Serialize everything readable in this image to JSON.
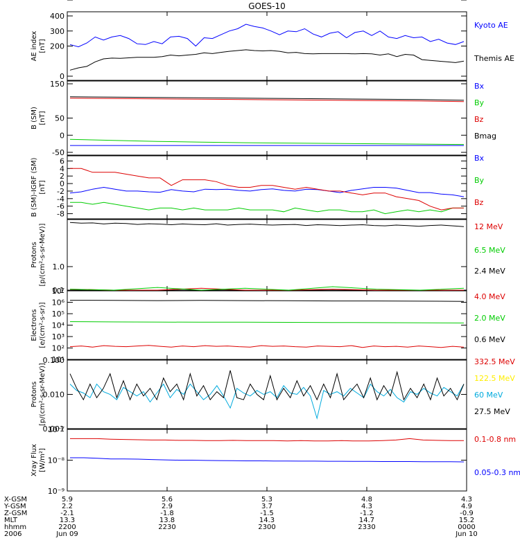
{
  "title": "GOES-10",
  "colors": {
    "black": "#000000",
    "blue": "#0000ff",
    "green": "#00cc00",
    "red": "#dd0000",
    "cyan": "#00aadd",
    "yellow": "#ffee00"
  },
  "chart_data": [
    {
      "type": "line",
      "ylabel": [
        "AE index",
        "[nT]"
      ],
      "ylim": [
        0,
        400
      ],
      "yticks": [
        "0",
        "100",
        "200",
        "300",
        "400"
      ],
      "series": [
        {
          "name": "Kyoto AE",
          "color": "#0000ff",
          "values": [
            210,
            195,
            220,
            260,
            240,
            260,
            270,
            250,
            215,
            210,
            230,
            215,
            260,
            265,
            250,
            200,
            255,
            250,
            275,
            300,
            315,
            345,
            330,
            320,
            300,
            275,
            300,
            295,
            315,
            280,
            260,
            285,
            295,
            255,
            290,
            300,
            270,
            300,
            260,
            250,
            270,
            255,
            260,
            230,
            245,
            220,
            210,
            230
          ]
        },
        {
          "name": "Themis AE",
          "color": "#000000",
          "values": [
            40,
            55,
            65,
            95,
            115,
            120,
            118,
            122,
            125,
            125,
            125,
            130,
            140,
            135,
            140,
            145,
            155,
            150,
            158,
            165,
            170,
            175,
            170,
            168,
            170,
            165,
            155,
            158,
            150,
            148,
            150,
            150,
            150,
            150,
            148,
            150,
            148,
            140,
            148,
            130,
            145,
            140,
            110,
            105,
            100,
            95,
            90,
            100
          ]
        }
      ]
    },
    {
      "type": "line",
      "ylabel": [
        "B (SM)",
        "[nT]"
      ],
      "ylim": [
        -50,
        150
      ],
      "yticks": [
        "-50",
        "0",
        "50",
        "100",
        "150"
      ],
      "series": [
        {
          "name": "Bx",
          "color": "#0000ff",
          "values": [
            -30,
            -30,
            -30,
            -30,
            -30,
            -30,
            -30,
            -30,
            -30,
            -30
          ]
        },
        {
          "name": "By",
          "color": "#00cc00",
          "values": [
            -12,
            -15,
            -18,
            -20,
            -22,
            -23,
            -24,
            -25,
            -26,
            -27
          ]
        },
        {
          "name": "Bz",
          "color": "#dd0000",
          "values": [
            108,
            107,
            106,
            105,
            104,
            103,
            102,
            101,
            100,
            98
          ]
        },
        {
          "name": "Bmag",
          "color": "#000000",
          "values": [
            112,
            111,
            110,
            109,
            108,
            107,
            106,
            105,
            104,
            102
          ]
        }
      ]
    },
    {
      "type": "line",
      "ylabel": [
        "B (SM)-IGRF (SM)",
        "[nT]"
      ],
      "ylim": [
        -9,
        7
      ],
      "yticks": [
        "-8",
        "-6",
        "-4",
        "-2",
        "0",
        "2",
        "4",
        "6"
      ],
      "series": [
        {
          "name": "Bx",
          "color": "#0000ff",
          "values": [
            -2.5,
            -2.2,
            -1.5,
            -1.0,
            -1.5,
            -2.0,
            -2.0,
            -2.2,
            -2.3,
            -1.6,
            -2.0,
            -2.2,
            -1.5,
            -1.6,
            -1.5,
            -1.8,
            -2.0,
            -1.6,
            -1.4,
            -1.8,
            -2.0,
            -1.5,
            -1.6,
            -2.0,
            -2.4,
            -1.8,
            -1.4,
            -1.0,
            -1.0,
            -1.2,
            -1.8,
            -2.4,
            -2.4,
            -2.8,
            -3.0,
            -3.5
          ]
        },
        {
          "name": "By",
          "color": "#00cc00",
          "values": [
            -5.0,
            -5.0,
            -5.5,
            -5.0,
            -5.5,
            -6.0,
            -6.5,
            -7.0,
            -6.5,
            -6.5,
            -7.0,
            -6.5,
            -7.0,
            -7.0,
            -7.0,
            -6.5,
            -7.0,
            -7.0,
            -7.0,
            -7.5,
            -6.5,
            -7.0,
            -7.5,
            -7.0,
            -7.0,
            -7.5,
            -7.5,
            -7.0,
            -8.0,
            -7.5,
            -7.0,
            -7.5,
            -7.0,
            -7.5,
            -6.5,
            -6.5
          ]
        },
        {
          "name": "Bz",
          "color": "#dd0000",
          "values": [
            4.0,
            4.0,
            3.0,
            3.0,
            3.0,
            2.5,
            2.0,
            1.5,
            1.5,
            -0.5,
            1.0,
            1.0,
            1.0,
            0.5,
            -0.5,
            -1.0,
            -1.0,
            -0.5,
            -0.5,
            -1.0,
            -1.5,
            -1.0,
            -1.5,
            -2.0,
            -2.0,
            -2.5,
            -3.0,
            -2.5,
            -2.5,
            -3.5,
            -4.0,
            -4.5,
            -6.0,
            -7.0,
            -6.5,
            -6.5
          ]
        }
      ]
    },
    {
      "type": "line",
      "ylabel": [
        "Protons",
        "[p/(cm²-s-sr-MeV)]"
      ],
      "yscale": "log",
      "ylim": [
        0.1,
        100
      ],
      "yticks": [
        "0.1",
        "1.0",
        "10.0",
        "100.0"
      ],
      "series": [
        {
          "name": "12 MeV",
          "color": "#dd0000",
          "values": [
            0.11,
            0.1,
            0.1,
            0.12,
            0.1,
            0.1,
            0.11,
            0.1,
            0.1,
            0.1
          ]
        },
        {
          "name": "6.5 MeV",
          "color": "#00cc00",
          "values": [
            0.11,
            0.1,
            0.13,
            0.1,
            0.12,
            0.1,
            0.14,
            0.11,
            0.1,
            0.12
          ]
        },
        {
          "name": "2.4 MeV",
          "color": "#000000",
          "values": [
            75,
            70,
            72,
            65,
            70,
            68,
            62,
            66,
            64,
            60,
            65,
            62,
            60,
            66,
            58,
            62,
            64,
            60,
            58,
            60,
            62,
            56,
            60,
            58,
            55,
            58,
            60,
            56,
            54,
            58,
            55,
            52,
            56,
            58,
            54,
            50
          ]
        }
      ]
    },
    {
      "type": "line",
      "ylabel": [
        "Electrons",
        "[e/(cm²-s-sr)]"
      ],
      "yscale": "log",
      "ylim": [
        10,
        10000000
      ],
      "yticks": [
        "10¹",
        "10²",
        "10³",
        "10⁴",
        "10⁵",
        "10⁶",
        "10⁷"
      ],
      "series": [
        {
          "name": "4.0 MeV",
          "color": "#dd0000",
          "values": [
            130,
            150,
            120,
            160,
            140,
            130,
            150,
            170,
            140,
            120,
            150,
            130,
            160,
            140,
            150,
            130,
            120,
            160,
            140,
            150,
            130,
            120,
            150,
            140,
            130,
            160,
            110,
            150,
            130,
            140,
            120,
            150,
            130,
            110,
            140,
            120
          ]
        },
        {
          "name": "2.0 MeV",
          "color": "#00cc00",
          "values": [
            20000,
            19000,
            18500,
            18000,
            18000,
            17500,
            17000,
            16500,
            16000,
            15500
          ]
        },
        {
          "name": "0.6 MeV",
          "color": "#000000",
          "values": [
            1500000,
            1450000,
            1400000,
            1450000,
            1400000,
            1350000,
            1300000,
            1300000,
            1250000,
            1200000
          ]
        }
      ]
    },
    {
      "type": "line",
      "ylabel": [
        "Protons",
        "[p/(cm²-s-sr-MeV)]"
      ],
      "yscale": "log",
      "ylim": [
        0.001,
        0.1
      ],
      "yticks": [
        "0.001",
        "0.010",
        "0.100"
      ],
      "series": [
        {
          "name": "332.5 MeV",
          "color": "#dd0000",
          "values": []
        },
        {
          "name": "122.5 MeV",
          "color": "#ffee00",
          "values": []
        },
        {
          "name": "60 MeV",
          "color": "#00aadd",
          "values": [
            0.02,
            0.013,
            0.011,
            0.008,
            0.02,
            0.012,
            0.01,
            0.007,
            0.016,
            0.012,
            0.009,
            0.012,
            0.006,
            0.011,
            0.02,
            0.008,
            0.014,
            0.01,
            0.02,
            0.012,
            0.007,
            0.01,
            0.018,
            0.009,
            0.004,
            0.015,
            0.011,
            0.009,
            0.013,
            0.01,
            0.012,
            0.008,
            0.018,
            0.011,
            0.01,
            0.016,
            0.009,
            0.002,
            0.013,
            0.01,
            0.012,
            0.009,
            0.015,
            0.011,
            0.008,
            0.02,
            0.012,
            0.009,
            0.014,
            0.008,
            0.006,
            0.012,
            0.01,
            0.015,
            0.011,
            0.009,
            0.016,
            0.012,
            0.009,
            0.02
          ]
        },
        {
          "name": "27.5 MeV",
          "color": "#000000",
          "values": [
            0.04,
            0.015,
            0.007,
            0.02,
            0.008,
            0.015,
            0.04,
            0.008,
            0.025,
            0.007,
            0.02,
            0.009,
            0.015,
            0.007,
            0.03,
            0.012,
            0.02,
            0.007,
            0.04,
            0.009,
            0.018,
            0.007,
            0.012,
            0.008,
            0.05,
            0.008,
            0.007,
            0.02,
            0.01,
            0.007,
            0.035,
            0.007,
            0.015,
            0.008,
            0.025,
            0.009,
            0.018,
            0.007,
            0.02,
            0.008,
            0.04,
            0.007,
            0.012,
            0.02,
            0.008,
            0.03,
            0.007,
            0.018,
            0.009,
            0.045,
            0.007,
            0.015,
            0.008,
            0.02,
            0.007,
            0.03,
            0.009,
            0.015,
            0.007,
            0.02
          ]
        }
      ]
    },
    {
      "type": "line",
      "ylabel": [
        "Xray Flux",
        "[W/m²]"
      ],
      "yscale": "log",
      "ylim": [
        1e-09,
        1e-07
      ],
      "yticks": [
        "10⁻⁹",
        "10⁻⁸",
        "10⁻⁷"
      ],
      "series": [
        {
          "name": "0.1-0.8 nm",
          "color": "#dd0000",
          "values": [
            5e-08,
            5e-08,
            5e-08,
            4.8e-08,
            4.7e-08,
            4.6e-08,
            4.5e-08,
            4.5e-08,
            4.4e-08,
            4.4e-08,
            4.3e-08,
            4.3e-08,
            4.4e-08,
            4.3e-08,
            4.3e-08,
            4.3e-08,
            4.2e-08,
            4.3e-08,
            4.2e-08,
            4.2e-08,
            4.3e-08,
            4.2e-08,
            4.2e-08,
            4.3e-08,
            4.5e-08,
            5e-08,
            4.5e-08,
            4.4e-08,
            4.3e-08,
            4.3e-08
          ]
        },
        {
          "name": "0.05-0.3 nm",
          "color": "#0000ff",
          "values": [
            1.2e-08,
            1.2e-08,
            1.15e-08,
            1.1e-08,
            1.1e-08,
            1.08e-08,
            1.05e-08,
            1.02e-08,
            1e-08,
            1e-08,
            9.8e-09,
            9.7e-09,
            9.6e-09,
            9.5e-09,
            9.5e-09,
            9.4e-09,
            9.4e-09,
            9.3e-09,
            9.3e-09,
            9.2e-09,
            9.2e-09,
            9.1e-09,
            9.1e-09,
            9e-09,
            9e-09,
            9e-09,
            8.9e-09,
            8.9e-09,
            8.9e-09,
            8.8e-09
          ]
        }
      ]
    }
  ],
  "x_axis": {
    "row_labels": [
      "X-GSM",
      "Y-GSM",
      "Z-GSM",
      "MLT",
      "hhmm",
      "2006"
    ],
    "columns": [
      [
        "5.9",
        "2.2",
        "-2.1",
        "13.3",
        "2200",
        "Jun 09"
      ],
      [
        "5.6",
        "2.9",
        "-1.8",
        "13.8",
        "2230",
        ""
      ],
      [
        "5.3",
        "3.7",
        "-1.5",
        "14.3",
        "2300",
        ""
      ],
      [
        "4.8",
        "4.3",
        "-1.2",
        "14.7",
        "2330",
        ""
      ],
      [
        "4.3",
        "4.9",
        "-0.9",
        "15.2",
        "0000",
        "Jun 10"
      ]
    ]
  }
}
